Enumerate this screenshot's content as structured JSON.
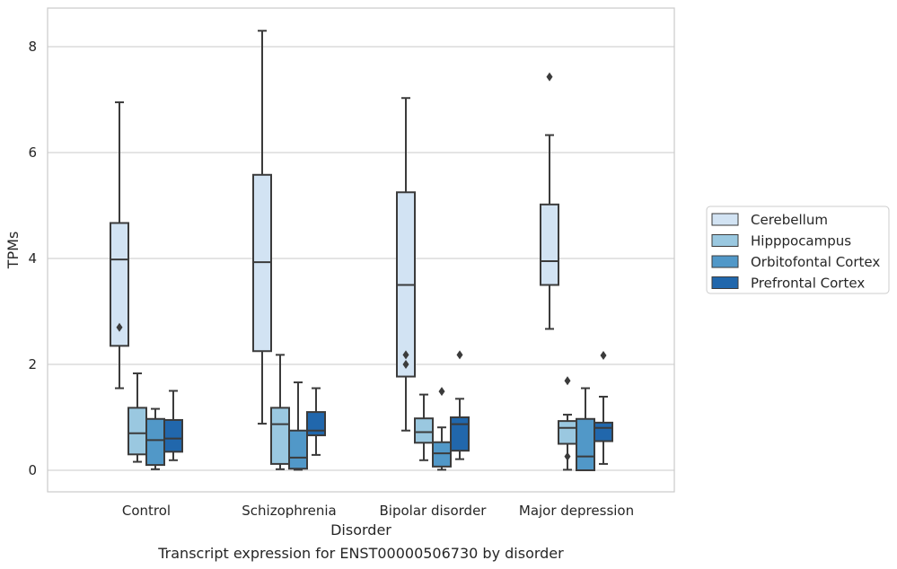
{
  "caption": "Transcript expression for ENST00000506730 by disorder",
  "chart_data": {
    "type": "boxplot",
    "title": "",
    "xlabel": "Disorder",
    "ylabel": "TPMs",
    "ylim": [
      -0.4,
      8.75
    ],
    "yticks": [
      0,
      2,
      4,
      6,
      8
    ],
    "grid": "horizontal",
    "legend_placement": "right",
    "categories": [
      "Control",
      "Schizophrenia",
      "Bipolar disorder",
      "Major depression"
    ],
    "series": [
      {
        "name": "Cerebellum",
        "color": "#d2e3f3",
        "boxes": [
          {
            "whislo": 1.55,
            "q1": 2.35,
            "med": 3.98,
            "q3": 4.67,
            "whishi": 6.95,
            "fliers": [
              2.7
            ]
          },
          {
            "whislo": 0.88,
            "q1": 2.25,
            "med": 3.93,
            "q3": 5.58,
            "whishi": 8.3,
            "fliers": []
          },
          {
            "whislo": 0.75,
            "q1": 1.77,
            "med": 3.5,
            "q3": 5.25,
            "whishi": 7.03,
            "fliers": [
              2.18,
              2.0
            ]
          },
          {
            "whislo": 2.67,
            "q1": 3.5,
            "med": 3.95,
            "q3": 5.02,
            "whishi": 6.33,
            "fliers": [
              7.43
            ]
          }
        ]
      },
      {
        "name": "Hipppocampus",
        "color": "#9ac8e0",
        "boxes": [
          {
            "whislo": 0.16,
            "q1": 0.3,
            "med": 0.7,
            "q3": 1.18,
            "whishi": 1.83,
            "fliers": []
          },
          {
            "whislo": 0.02,
            "q1": 0.12,
            "med": 0.87,
            "q3": 1.18,
            "whishi": 2.18,
            "fliers": []
          },
          {
            "whislo": 0.19,
            "q1": 0.52,
            "med": 0.72,
            "q3": 0.98,
            "whishi": 1.43,
            "fliers": []
          },
          {
            "whislo": 0.01,
            "q1": 0.5,
            "med": 0.8,
            "q3": 0.93,
            "whishi": 1.05,
            "fliers": [
              0.26,
              1.69
            ]
          }
        ]
      },
      {
        "name": "Orbitofontal Cortex",
        "color": "#5198c8",
        "boxes": [
          {
            "whislo": 0.02,
            "q1": 0.1,
            "med": 0.57,
            "q3": 0.97,
            "whishi": 1.16,
            "fliers": []
          },
          {
            "whislo": 0.01,
            "q1": 0.03,
            "med": 0.24,
            "q3": 0.75,
            "whishi": 1.66,
            "fliers": []
          },
          {
            "whislo": 0.01,
            "q1": 0.07,
            "med": 0.32,
            "q3": 0.53,
            "whishi": 0.81,
            "fliers": [
              1.49
            ]
          },
          {
            "whislo": 0.0,
            "q1": 0.0,
            "med": 0.26,
            "q3": 0.97,
            "whishi": 1.55,
            "fliers": []
          }
        ]
      },
      {
        "name": "Prefrontal Cortex",
        "color": "#2167ac",
        "boxes": [
          {
            "whislo": 0.19,
            "q1": 0.35,
            "med": 0.6,
            "q3": 0.95,
            "whishi": 1.5,
            "fliers": []
          },
          {
            "whislo": 0.29,
            "q1": 0.66,
            "med": 0.75,
            "q3": 1.1,
            "whishi": 1.55,
            "fliers": []
          },
          {
            "whislo": 0.21,
            "q1": 0.37,
            "med": 0.87,
            "q3": 1.0,
            "whishi": 1.35,
            "fliers": [
              2.18
            ]
          },
          {
            "whislo": 0.12,
            "q1": 0.55,
            "med": 0.8,
            "q3": 0.9,
            "whishi": 1.39,
            "fliers": [
              2.17
            ]
          }
        ]
      }
    ]
  }
}
